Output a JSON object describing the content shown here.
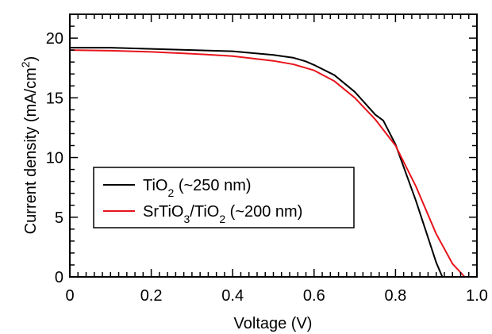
{
  "chart_data": {
    "type": "line",
    "xlabel": "Voltage (V)",
    "ylabel_parts": {
      "main": "Current density (mA/cm",
      "sup": "2",
      "close": ")"
    },
    "xlim": [
      0,
      1.0
    ],
    "ylim": [
      0,
      22
    ],
    "x_ticks": [
      0,
      0.2,
      0.4,
      0.6,
      0.8,
      1.0
    ],
    "x_tick_labels": [
      "0",
      "0.2",
      "0.4",
      "0.6",
      "0.8",
      "1.0"
    ],
    "y_ticks": [
      0,
      5,
      10,
      15,
      20
    ],
    "y_tick_labels": [
      "0",
      "5",
      "10",
      "15",
      "20"
    ],
    "grid": false,
    "legend_position": "lower-left",
    "series": [
      {
        "name": "TiO2 (~250 nm)",
        "legend_parts": {
          "a": "TiO",
          "sub": "2",
          "b": " (~250 nm)"
        },
        "color": "#000000",
        "x": [
          0,
          0.1,
          0.2,
          0.3,
          0.4,
          0.5,
          0.55,
          0.58,
          0.6,
          0.65,
          0.7,
          0.75,
          0.77,
          0.8,
          0.85,
          0.88,
          0.9,
          0.915
        ],
        "y": [
          19.2,
          19.2,
          19.1,
          19.0,
          18.9,
          18.6,
          18.35,
          18.05,
          17.75,
          16.9,
          15.5,
          13.6,
          13.1,
          11.1,
          6.4,
          3.3,
          1.2,
          0
        ]
      },
      {
        "name": "SrTiO3/TiO2 (~200 nm)",
        "legend_parts": {
          "a": "SrTiO",
          "sub1": "3",
          "b": "/TiO",
          "sub2": "2",
          "c": " (~200 nm)"
        },
        "color": "#e8141c",
        "x": [
          0,
          0.1,
          0.2,
          0.3,
          0.4,
          0.5,
          0.55,
          0.6,
          0.65,
          0.7,
          0.75,
          0.8,
          0.85,
          0.9,
          0.94,
          0.97
        ],
        "y": [
          19.0,
          18.95,
          18.85,
          18.7,
          18.5,
          18.1,
          17.8,
          17.3,
          16.4,
          15.0,
          13.2,
          11.0,
          7.6,
          3.6,
          1.1,
          0
        ]
      }
    ]
  }
}
